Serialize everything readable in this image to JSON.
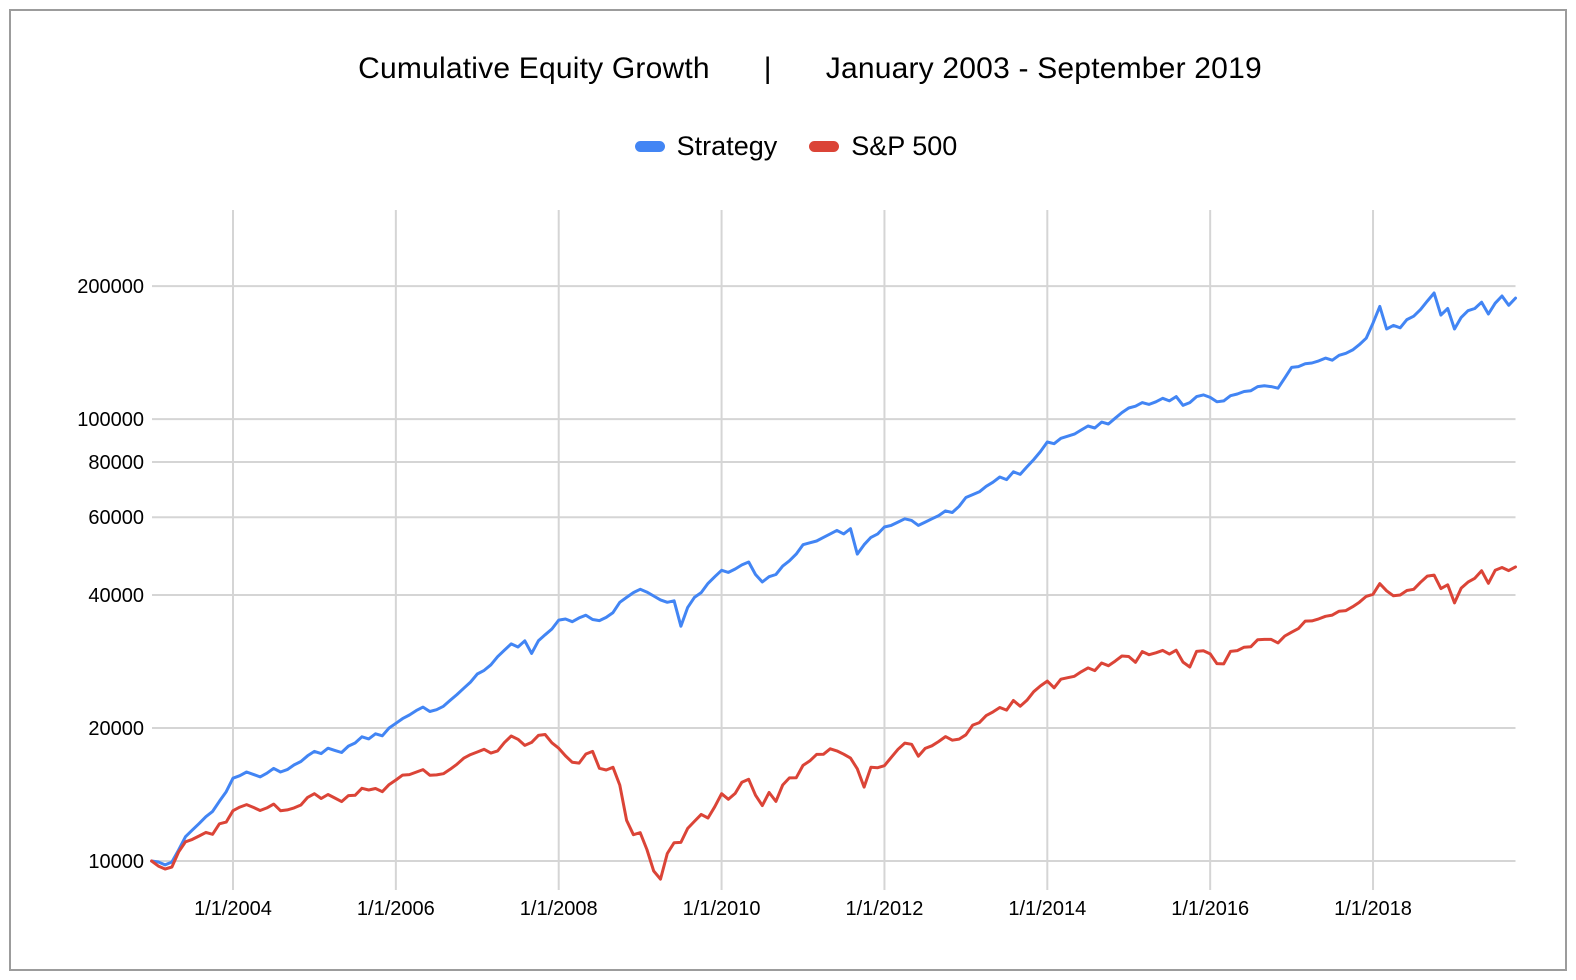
{
  "page": {
    "background": "#ffffff",
    "border_color": "#9c9c9c"
  },
  "title": {
    "left": "Cumulative Equity Growth",
    "separator": "|",
    "right": "January 2003 - September 2019"
  },
  "legend": [
    {
      "label": "Strategy",
      "color": "#4285f4"
    },
    {
      "label": "S&P 500",
      "color": "#db4437"
    }
  ],
  "chart_data": {
    "type": "line",
    "title": "Cumulative Equity Growth | January 2003 - September 2019",
    "xlabel": "",
    "ylabel": "",
    "y_scale": "log",
    "grid": true,
    "legend_position": "top-center",
    "x_start": "2003-01",
    "x_end": "2019-09",
    "frequency": "monthly",
    "start_value": 10000,
    "ylim": [
      8900,
      297000
    ],
    "y_ticks": [
      {
        "label": "200000",
        "value": 200000
      },
      {
        "label": "100000",
        "value": 100000
      },
      {
        "label": "80000",
        "value": 80000
      },
      {
        "label": "60000",
        "value": 60000
      },
      {
        "label": "40000",
        "value": 40000
      },
      {
        "label": "20000",
        "value": 20000
      },
      {
        "label": "10000",
        "value": 10000
      }
    ],
    "x_ticks": [
      {
        "label": "1/1/2004",
        "year": 2004
      },
      {
        "label": "1/1/2006",
        "year": 2006
      },
      {
        "label": "1/1/2008",
        "year": 2008
      },
      {
        "label": "1/1/2010",
        "year": 2010
      },
      {
        "label": "1/1/2012",
        "year": 2012
      },
      {
        "label": "1/1/2014",
        "year": 2014
      },
      {
        "label": "1/1/2016",
        "year": 2016
      },
      {
        "label": "1/1/2018",
        "year": 2018
      }
    ],
    "series": [
      {
        "name": "Strategy",
        "color": "#4285f4",
        "values": [
          10000,
          9950,
          9800,
          9950,
          10600,
          11350,
          11750,
          12150,
          12600,
          12950,
          13650,
          14350,
          15400,
          15600,
          15900,
          15700,
          15500,
          15800,
          16200,
          15900,
          16100,
          16500,
          16800,
          17300,
          17700,
          17500,
          18000,
          17800,
          17600,
          18200,
          18500,
          19100,
          18900,
          19400,
          19200,
          20000,
          20500,
          21000,
          21400,
          21900,
          22300,
          21800,
          22000,
          22400,
          23100,
          23800,
          24600,
          25400,
          26500,
          27000,
          27800,
          29000,
          30000,
          31000,
          30500,
          31500,
          29500,
          31500,
          32500,
          33500,
          35100,
          35300,
          34800,
          35500,
          36000,
          35200,
          35000,
          35600,
          36500,
          38500,
          39500,
          40500,
          41200,
          40600,
          39800,
          39000,
          38500,
          38800,
          34000,
          37500,
          39500,
          40500,
          42500,
          44000,
          45500,
          45000,
          45800,
          46800,
          47500,
          44500,
          42800,
          44000,
          44500,
          46500,
          47800,
          49500,
          52000,
          52500,
          53000,
          54000,
          55000,
          56000,
          55000,
          56500,
          49500,
          52000,
          54000,
          55000,
          57000,
          57500,
          58500,
          59500,
          59000,
          57500,
          58500,
          59500,
          60500,
          62000,
          61500,
          63500,
          66500,
          67500,
          68500,
          70500,
          72000,
          74000,
          73000,
          76000,
          75000,
          78000,
          81000,
          84500,
          88800,
          88000,
          90500,
          91500,
          92500,
          94500,
          96500,
          95500,
          98500,
          97500,
          100500,
          103500,
          106000,
          107000,
          109000,
          108000,
          109500,
          111500,
          110000,
          112500,
          107500,
          109000,
          112500,
          113500,
          112000,
          109500,
          110000,
          113000,
          114000,
          115500,
          116000,
          118500,
          119000,
          118500,
          117500,
          124000,
          131000,
          131500,
          133500,
          134000,
          135500,
          137500,
          136000,
          139500,
          141000,
          143500,
          147500,
          152500,
          165000,
          180000,
          160000,
          163000,
          161000,
          168000,
          171000,
          177000,
          185000,
          193000,
          172000,
          178000,
          160000,
          170000,
          176000,
          178000,
          184000,
          173000,
          183000,
          190000,
          181000,
          188000
        ]
      },
      {
        "name": "S&P 500",
        "color": "#db4437",
        "values": [
          10000,
          9740,
          9590,
          9690,
          10490,
          11050,
          11190,
          11390,
          11610,
          11490,
          12140,
          12250,
          13000,
          13240,
          13420,
          13220,
          13010,
          13190,
          13450,
          13000,
          13050,
          13190,
          13390,
          13930,
          14200,
          13850,
          14140,
          13890,
          13630,
          14060,
          14080,
          14610,
          14480,
          14590,
          14350,
          14890,
          15250,
          15650,
          15690,
          15890,
          16100,
          15640,
          15660,
          15760,
          16130,
          16550,
          17090,
          17410,
          17650,
          17900,
          17550,
          17750,
          18530,
          19180,
          18860,
          18270,
          18550,
          19240,
          19330,
          18520,
          18000,
          17290,
          16730,
          16660,
          17470,
          17700,
          16210,
          16070,
          16300,
          14850,
          12360,
          11470,
          11590,
          10620,
          9490,
          9100,
          10400,
          11000,
          11020,
          11850,
          12290,
          12750,
          12510,
          13270,
          14200,
          13790,
          14220,
          15080,
          15310,
          14090,
          13350,
          14290,
          13640,
          14860,
          15420,
          15430,
          16460,
          16850,
          17430,
          17440,
          17950,
          17750,
          17450,
          17100,
          16170,
          14700,
          16300,
          16260,
          16430,
          17160,
          17900,
          18490,
          18370,
          17270,
          17980,
          18230,
          18640,
          19120,
          18770,
          18880,
          19300,
          20300,
          20570,
          21340,
          21750,
          22260,
          21960,
          23080,
          22410,
          23110,
          24170,
          24910,
          25540,
          24660,
          25790,
          26000,
          26190,
          26810,
          27360,
          26980,
          28060,
          27670,
          28340,
          29100,
          29030,
          28160,
          29780,
          29310,
          29590,
          29970,
          29390,
          30000,
          28190,
          27490,
          29810,
          29900,
          29430,
          27970,
          27930,
          29820,
          29940,
          30480,
          30560,
          31680,
          31730,
          31730,
          31160,
          32310,
          32950,
          33570,
          34910,
          34950,
          35310,
          35800,
          36030,
          36770,
          36880,
          37640,
          38520,
          39700,
          40140,
          42440,
          40880,
          39840,
          39990,
          40950,
          41200,
          42740,
          44130,
          44380,
          41350,
          42190,
          38390,
          41460,
          42790,
          43630,
          45390,
          42510,
          45500,
          46160,
          45420,
          46300
        ]
      }
    ]
  },
  "layout_colors": {
    "gridline": "#d5d5d5",
    "tick_label": "#000000"
  }
}
